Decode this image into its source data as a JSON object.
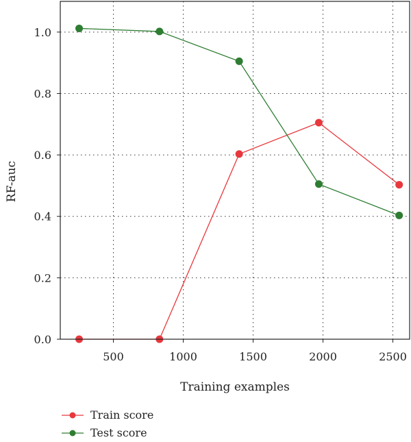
{
  "chart_data": {
    "type": "line",
    "xlabel": "Training examples",
    "ylabel": "RF-auc",
    "xlim": [
      120,
      2620
    ],
    "ylim": [
      0.0,
      1.1
    ],
    "x_ticks": [
      500,
      1000,
      1500,
      2000,
      2500
    ],
    "y_ticks": [
      0.0,
      0.2,
      0.4,
      0.6,
      0.8,
      1.0
    ],
    "x_tick_labels": [
      "500",
      "1000",
      "1500",
      "2000",
      "2500"
    ],
    "y_tick_labels": [
      "0.0",
      "0.2",
      "0.4",
      "0.6",
      "0.8",
      "1.0"
    ],
    "grid": true,
    "legend_position": "bottom-left",
    "series": [
      {
        "name": "Train score",
        "color": "#e8383d",
        "x": [
          255,
          830,
          1400,
          1970,
          2545
        ],
        "y": [
          0.0,
          0.0,
          0.603,
          0.705,
          0.503
        ]
      },
      {
        "name": "Test score",
        "color": "#2e7d32",
        "x": [
          255,
          830,
          1400,
          1970,
          2545
        ],
        "y": [
          1.012,
          1.002,
          0.905,
          0.505,
          0.403
        ]
      }
    ]
  }
}
